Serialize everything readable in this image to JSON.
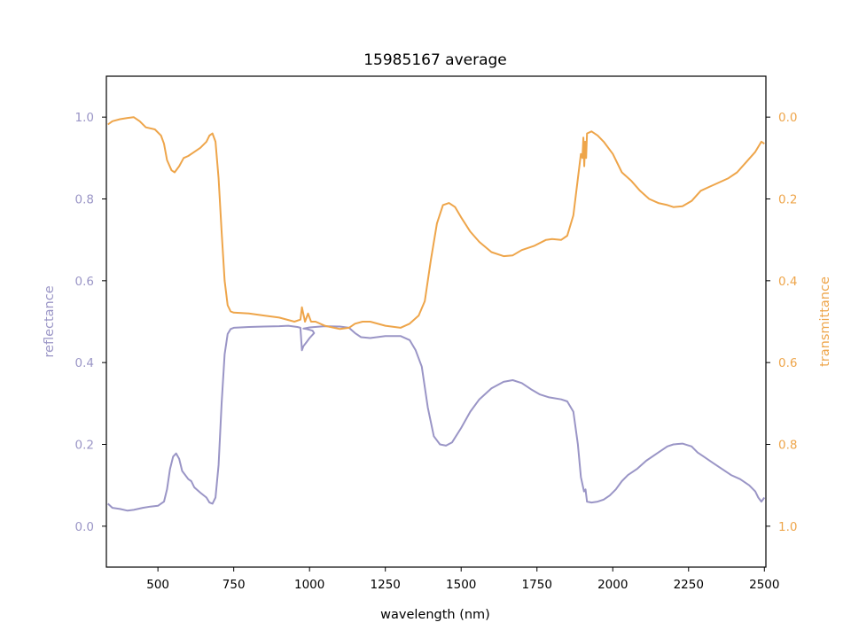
{
  "chart_data": {
    "type": "line",
    "title": "15985167 average",
    "xlabel": "wavelength (nm)",
    "ylabel_left": "reflectance",
    "ylabel_right": "transmittance",
    "xlim": [
      330,
      2505
    ],
    "ylim_left": [
      -0.1,
      1.1
    ],
    "ylim_right": [
      1.1,
      -0.1
    ],
    "x_ticks": [
      500,
      750,
      1000,
      1250,
      1500,
      1750,
      2000,
      2250,
      2500
    ],
    "y_ticks_left": [
      0.0,
      0.2,
      0.4,
      0.6,
      0.8,
      1.0
    ],
    "y_ticks_right": [
      0.0,
      0.2,
      0.4,
      0.6,
      0.8,
      1.0
    ],
    "grid": false,
    "colors": {
      "reflectance": "#9a95c6",
      "transmittance": "#eea54a",
      "axes": "#000000"
    },
    "series": [
      {
        "name": "reflectance",
        "axis": "left",
        "points": [
          [
            335,
            0.055
          ],
          [
            350,
            0.045
          ],
          [
            375,
            0.042
          ],
          [
            400,
            0.038
          ],
          [
            420,
            0.04
          ],
          [
            450,
            0.045
          ],
          [
            475,
            0.048
          ],
          [
            500,
            0.05
          ],
          [
            520,
            0.06
          ],
          [
            530,
            0.09
          ],
          [
            540,
            0.14
          ],
          [
            550,
            0.17
          ],
          [
            560,
            0.178
          ],
          [
            570,
            0.165
          ],
          [
            580,
            0.135
          ],
          [
            600,
            0.115
          ],
          [
            610,
            0.11
          ],
          [
            620,
            0.095
          ],
          [
            640,
            0.082
          ],
          [
            660,
            0.07
          ],
          [
            670,
            0.058
          ],
          [
            680,
            0.055
          ],
          [
            690,
            0.07
          ],
          [
            700,
            0.15
          ],
          [
            710,
            0.3
          ],
          [
            720,
            0.42
          ],
          [
            730,
            0.47
          ],
          [
            740,
            0.482
          ],
          [
            750,
            0.485
          ],
          [
            800,
            0.487
          ],
          [
            850,
            0.488
          ],
          [
            900,
            0.489
          ],
          [
            930,
            0.49
          ],
          [
            960,
            0.487
          ],
          [
            970,
            0.485
          ],
          [
            975,
            0.43
          ],
          [
            980,
            0.44
          ],
          [
            990,
            0.45
          ],
          [
            1000,
            0.46
          ],
          [
            1010,
            0.468
          ],
          [
            1015,
            0.472
          ],
          [
            1010,
            0.478
          ],
          [
            1000,
            0.48
          ],
          [
            990,
            0.482
          ],
          [
            980,
            0.483
          ],
          [
            1000,
            0.486
          ],
          [
            1050,
            0.489
          ],
          [
            1100,
            0.488
          ],
          [
            1130,
            0.485
          ],
          [
            1150,
            0.472
          ],
          [
            1170,
            0.462
          ],
          [
            1200,
            0.46
          ],
          [
            1250,
            0.465
          ],
          [
            1300,
            0.465
          ],
          [
            1330,
            0.455
          ],
          [
            1350,
            0.43
          ],
          [
            1370,
            0.39
          ],
          [
            1390,
            0.29
          ],
          [
            1410,
            0.22
          ],
          [
            1430,
            0.2
          ],
          [
            1450,
            0.197
          ],
          [
            1470,
            0.205
          ],
          [
            1500,
            0.24
          ],
          [
            1530,
            0.28
          ],
          [
            1560,
            0.31
          ],
          [
            1600,
            0.337
          ],
          [
            1640,
            0.353
          ],
          [
            1670,
            0.357
          ],
          [
            1700,
            0.35
          ],
          [
            1730,
            0.335
          ],
          [
            1760,
            0.322
          ],
          [
            1790,
            0.315
          ],
          [
            1830,
            0.31
          ],
          [
            1850,
            0.305
          ],
          [
            1870,
            0.28
          ],
          [
            1885,
            0.2
          ],
          [
            1895,
            0.12
          ],
          [
            1905,
            0.085
          ],
          [
            1910,
            0.09
          ],
          [
            1915,
            0.06
          ],
          [
            1930,
            0.058
          ],
          [
            1950,
            0.06
          ],
          [
            1970,
            0.065
          ],
          [
            1990,
            0.075
          ],
          [
            2010,
            0.09
          ],
          [
            2030,
            0.11
          ],
          [
            2050,
            0.125
          ],
          [
            2080,
            0.14
          ],
          [
            2110,
            0.16
          ],
          [
            2150,
            0.18
          ],
          [
            2180,
            0.195
          ],
          [
            2200,
            0.2
          ],
          [
            2230,
            0.202
          ],
          [
            2260,
            0.195
          ],
          [
            2280,
            0.18
          ],
          [
            2300,
            0.17
          ],
          [
            2330,
            0.155
          ],
          [
            2360,
            0.14
          ],
          [
            2390,
            0.125
          ],
          [
            2420,
            0.115
          ],
          [
            2450,
            0.1
          ],
          [
            2470,
            0.085
          ],
          [
            2480,
            0.07
          ],
          [
            2490,
            0.06
          ],
          [
            2500,
            0.07
          ]
        ]
      },
      {
        "name": "transmittance",
        "axis": "right",
        "points": [
          [
            335,
            0.018
          ],
          [
            350,
            0.01
          ],
          [
            375,
            0.005
          ],
          [
            400,
            0.002
          ],
          [
            420,
            0.0
          ],
          [
            440,
            0.01
          ],
          [
            460,
            0.025
          ],
          [
            490,
            0.03
          ],
          [
            510,
            0.045
          ],
          [
            520,
            0.065
          ],
          [
            530,
            0.105
          ],
          [
            545,
            0.13
          ],
          [
            555,
            0.135
          ],
          [
            570,
            0.12
          ],
          [
            585,
            0.1
          ],
          [
            600,
            0.095
          ],
          [
            620,
            0.085
          ],
          [
            640,
            0.075
          ],
          [
            660,
            0.06
          ],
          [
            670,
            0.045
          ],
          [
            680,
            0.04
          ],
          [
            690,
            0.06
          ],
          [
            700,
            0.15
          ],
          [
            710,
            0.28
          ],
          [
            720,
            0.4
          ],
          [
            730,
            0.46
          ],
          [
            740,
            0.475
          ],
          [
            750,
            0.478
          ],
          [
            800,
            0.48
          ],
          [
            850,
            0.485
          ],
          [
            900,
            0.49
          ],
          [
            950,
            0.5
          ],
          [
            970,
            0.495
          ],
          [
            975,
            0.465
          ],
          [
            985,
            0.5
          ],
          [
            995,
            0.48
          ],
          [
            1005,
            0.5
          ],
          [
            1020,
            0.5
          ],
          [
            1050,
            0.51
          ],
          [
            1100,
            0.518
          ],
          [
            1130,
            0.515
          ],
          [
            1150,
            0.505
          ],
          [
            1175,
            0.5
          ],
          [
            1200,
            0.5
          ],
          [
            1250,
            0.51
          ],
          [
            1300,
            0.515
          ],
          [
            1330,
            0.505
          ],
          [
            1360,
            0.485
          ],
          [
            1380,
            0.45
          ],
          [
            1400,
            0.35
          ],
          [
            1420,
            0.26
          ],
          [
            1440,
            0.215
          ],
          [
            1460,
            0.21
          ],
          [
            1480,
            0.22
          ],
          [
            1500,
            0.245
          ],
          [
            1530,
            0.28
          ],
          [
            1560,
            0.305
          ],
          [
            1600,
            0.33
          ],
          [
            1640,
            0.34
          ],
          [
            1670,
            0.338
          ],
          [
            1700,
            0.325
          ],
          [
            1740,
            0.315
          ],
          [
            1780,
            0.3
          ],
          [
            1800,
            0.298
          ],
          [
            1830,
            0.3
          ],
          [
            1850,
            0.29
          ],
          [
            1870,
            0.24
          ],
          [
            1885,
            0.15
          ],
          [
            1895,
            0.09
          ],
          [
            1900,
            0.1
          ],
          [
            1903,
            0.05
          ],
          [
            1906,
            0.12
          ],
          [
            1909,
            0.06
          ],
          [
            1912,
            0.1
          ],
          [
            1915,
            0.04
          ],
          [
            1930,
            0.035
          ],
          [
            1950,
            0.045
          ],
          [
            1970,
            0.06
          ],
          [
            2000,
            0.09
          ],
          [
            2030,
            0.135
          ],
          [
            2060,
            0.155
          ],
          [
            2090,
            0.18
          ],
          [
            2120,
            0.2
          ],
          [
            2150,
            0.21
          ],
          [
            2180,
            0.215
          ],
          [
            2200,
            0.22
          ],
          [
            2230,
            0.218
          ],
          [
            2260,
            0.205
          ],
          [
            2290,
            0.18
          ],
          [
            2320,
            0.17
          ],
          [
            2350,
            0.16
          ],
          [
            2380,
            0.15
          ],
          [
            2410,
            0.135
          ],
          [
            2440,
            0.11
          ],
          [
            2470,
            0.085
          ],
          [
            2490,
            0.06
          ],
          [
            2500,
            0.065
          ]
        ]
      }
    ]
  }
}
